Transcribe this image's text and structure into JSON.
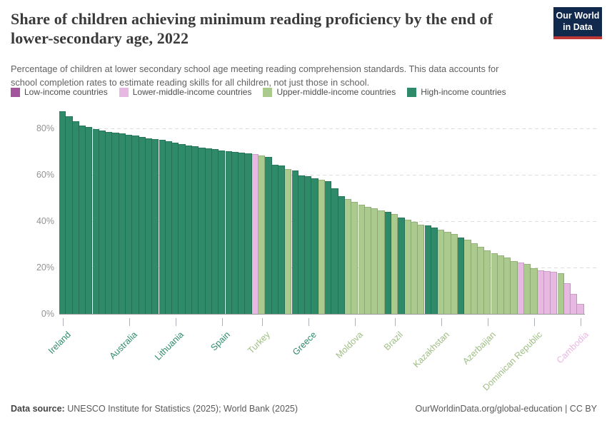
{
  "header": {
    "title_line1": "Share of children achieving minimum reading proficiency by the end of",
    "title_line2": "lower-secondary age, 2022",
    "subtitle_line1": "Percentage of children at lower secondary school age meeting reading comprehension standards. This data accounts for",
    "subtitle_line2": "school completion rates to estimate reading skills for all children, not just those in school.",
    "logo": {
      "line1": "Our World",
      "line2": "in Data",
      "bg_color": "#10294d",
      "stripe_color": "#be3737"
    }
  },
  "legend": {
    "items": [
      {
        "key": "low",
        "label": "Low-income countries",
        "color": "#a2559c"
      },
      {
        "key": "lmi",
        "label": "Lower-middle-income countries",
        "color": "#e7b8e2"
      },
      {
        "key": "umi",
        "label": "Upper-middle-income countries",
        "color": "#abcb8e"
      },
      {
        "key": "hi",
        "label": "High-income countries",
        "color": "#2e8a68"
      }
    ]
  },
  "chart_data": {
    "type": "bar",
    "title": "Share of children achieving minimum reading proficiency by the end of lower-secondary age, 2022",
    "xlabel": "",
    "ylabel": "",
    "ylim": [
      0,
      90
    ],
    "grid": "horizontal-dashed",
    "legend_position": "top",
    "y_ticks": [
      {
        "value": 0,
        "label": "0%"
      },
      {
        "value": 20,
        "label": "20%"
      },
      {
        "value": 40,
        "label": "40%"
      },
      {
        "value": 60,
        "label": "60%"
      },
      {
        "value": 80,
        "label": "80%"
      }
    ],
    "bars": [
      {
        "v": 87.3,
        "g": "hi",
        "n": "Ireland"
      },
      {
        "v": 85.3,
        "g": "hi"
      },
      {
        "v": 83.0,
        "g": "hi"
      },
      {
        "v": 81.2,
        "g": "hi"
      },
      {
        "v": 80.5,
        "g": "hi"
      },
      {
        "v": 79.8,
        "g": "hi"
      },
      {
        "v": 79.1,
        "g": "hi"
      },
      {
        "v": 78.4,
        "g": "hi"
      },
      {
        "v": 78.1,
        "g": "hi"
      },
      {
        "v": 77.8,
        "g": "hi"
      },
      {
        "v": 77.3,
        "g": "hi",
        "n": "Australia"
      },
      {
        "v": 76.9,
        "g": "hi"
      },
      {
        "v": 76.2,
        "g": "hi"
      },
      {
        "v": 75.8,
        "g": "hi"
      },
      {
        "v": 75.4,
        "g": "hi"
      },
      {
        "v": 75.0,
        "g": "hi"
      },
      {
        "v": 74.6,
        "g": "hi"
      },
      {
        "v": 74.0,
        "g": "hi",
        "n": "Lithuania"
      },
      {
        "v": 73.2,
        "g": "hi"
      },
      {
        "v": 72.6,
        "g": "hi"
      },
      {
        "v": 72.2,
        "g": "hi"
      },
      {
        "v": 71.8,
        "g": "hi"
      },
      {
        "v": 71.4,
        "g": "hi"
      },
      {
        "v": 71.0,
        "g": "hi"
      },
      {
        "v": 70.6,
        "g": "hi",
        "n": "Spain"
      },
      {
        "v": 70.2,
        "g": "hi"
      },
      {
        "v": 69.9,
        "g": "hi"
      },
      {
        "v": 69.6,
        "g": "hi"
      },
      {
        "v": 69.3,
        "g": "hi"
      },
      {
        "v": 68.9,
        "g": "lmi"
      },
      {
        "v": 68.4,
        "g": "umi",
        "n": "Turkey"
      },
      {
        "v": 67.8,
        "g": "hi"
      },
      {
        "v": 64.3,
        "g": "hi"
      },
      {
        "v": 63.9,
        "g": "hi"
      },
      {
        "v": 62.6,
        "g": "umi"
      },
      {
        "v": 61.9,
        "g": "hi"
      },
      {
        "v": 59.8,
        "g": "hi"
      },
      {
        "v": 59.4,
        "g": "hi",
        "n": "Greece"
      },
      {
        "v": 58.5,
        "g": "hi"
      },
      {
        "v": 58.0,
        "g": "umi"
      },
      {
        "v": 57.2,
        "g": "hi"
      },
      {
        "v": 54.2,
        "g": "hi"
      },
      {
        "v": 50.8,
        "g": "hi"
      },
      {
        "v": 49.5,
        "g": "umi"
      },
      {
        "v": 48.4,
        "g": "umi",
        "n": "Moldova"
      },
      {
        "v": 47.0,
        "g": "umi"
      },
      {
        "v": 46.3,
        "g": "umi"
      },
      {
        "v": 45.5,
        "g": "umi"
      },
      {
        "v": 44.7,
        "g": "umi"
      },
      {
        "v": 43.9,
        "g": "hi"
      },
      {
        "v": 43.0,
        "g": "umi",
        "n": "Brazil"
      },
      {
        "v": 41.4,
        "g": "hi"
      },
      {
        "v": 40.7,
        "g": "umi"
      },
      {
        "v": 39.6,
        "g": "umi"
      },
      {
        "v": 38.6,
        "g": "umi"
      },
      {
        "v": 38.1,
        "g": "hi"
      },
      {
        "v": 37.3,
        "g": "hi"
      },
      {
        "v": 36.2,
        "g": "umi",
        "n": "Kazakhstan"
      },
      {
        "v": 35.5,
        "g": "umi"
      },
      {
        "v": 34.5,
        "g": "umi"
      },
      {
        "v": 32.8,
        "g": "hi"
      },
      {
        "v": 31.9,
        "g": "umi"
      },
      {
        "v": 30.4,
        "g": "umi"
      },
      {
        "v": 28.9,
        "g": "umi"
      },
      {
        "v": 27.3,
        "g": "umi",
        "n": "Azerbaijan"
      },
      {
        "v": 26.3,
        "g": "umi"
      },
      {
        "v": 25.3,
        "g": "umi"
      },
      {
        "v": 24.2,
        "g": "umi"
      },
      {
        "v": 22.7,
        "g": "umi"
      },
      {
        "v": 22.2,
        "g": "lmi"
      },
      {
        "v": 21.5,
        "g": "umi"
      },
      {
        "v": 19.6,
        "g": "umi",
        "n": "Dominican Republic"
      },
      {
        "v": 18.8,
        "g": "lmi"
      },
      {
        "v": 18.6,
        "g": "lmi"
      },
      {
        "v": 18.3,
        "g": "lmi"
      },
      {
        "v": 17.6,
        "g": "umi"
      },
      {
        "v": 13.3,
        "g": "lmi"
      },
      {
        "v": 8.5,
        "g": "lmi"
      },
      {
        "v": 4.4,
        "g": "lmi",
        "n": "Cambodia"
      }
    ]
  },
  "footer": {
    "source_label": "Data source:",
    "source_text": " UNESCO Institute for Statistics (2025); World Bank (2025)",
    "link_text": "OurWorldinData.org/global-education | CC BY"
  }
}
